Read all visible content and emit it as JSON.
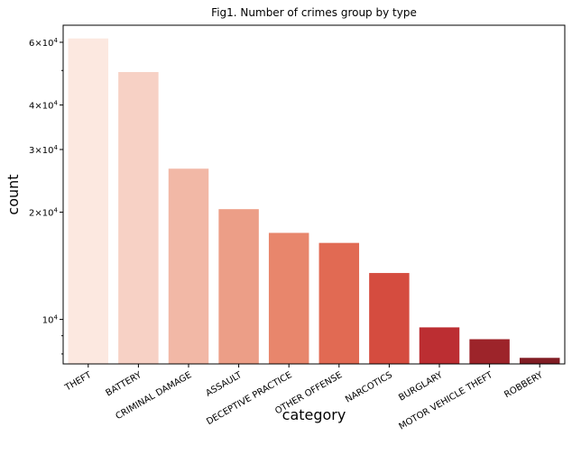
{
  "chart_data": {
    "type": "bar",
    "title": "Fig1. Number of crimes group by type",
    "xlabel": "category",
    "ylabel": "count",
    "yscale": "log",
    "ylim": [
      7500,
      67000
    ],
    "categories": [
      "THEFT",
      "BATTERY",
      "CRIMINAL DAMAGE",
      "ASSAULT",
      "DECEPTIVE PRACTICE",
      "OTHER OFFENSE",
      "NARCOTICS",
      "BURGLARY",
      "MOTOR VEHICLE THEFT",
      "ROBBERY"
    ],
    "values": [
      61500,
      49500,
      26500,
      20400,
      17500,
      16400,
      13500,
      9500,
      8800,
      7800
    ],
    "colors": [
      "#fce8e0",
      "#f7d1c5",
      "#f2b8a6",
      "#ec9e87",
      "#e8866c",
      "#e16a53",
      "#d54c3f",
      "#bc2e32",
      "#9d242a",
      "#811d24"
    ],
    "major_ticks": [
      {
        "value": 10000,
        "base": "10",
        "exp": "4",
        "coef": ""
      },
      {
        "value": 20000,
        "base": "10",
        "exp": "4",
        "coef": "2×"
      },
      {
        "value": 30000,
        "base": "10",
        "exp": "4",
        "coef": "3×"
      },
      {
        "value": 40000,
        "base": "10",
        "exp": "4",
        "coef": "4×"
      },
      {
        "value": 60000,
        "base": "10",
        "exp": "4",
        "coef": "6×"
      }
    ],
    "minor_ticks": [
      8000,
      9000,
      50000
    ],
    "grid": false
  }
}
